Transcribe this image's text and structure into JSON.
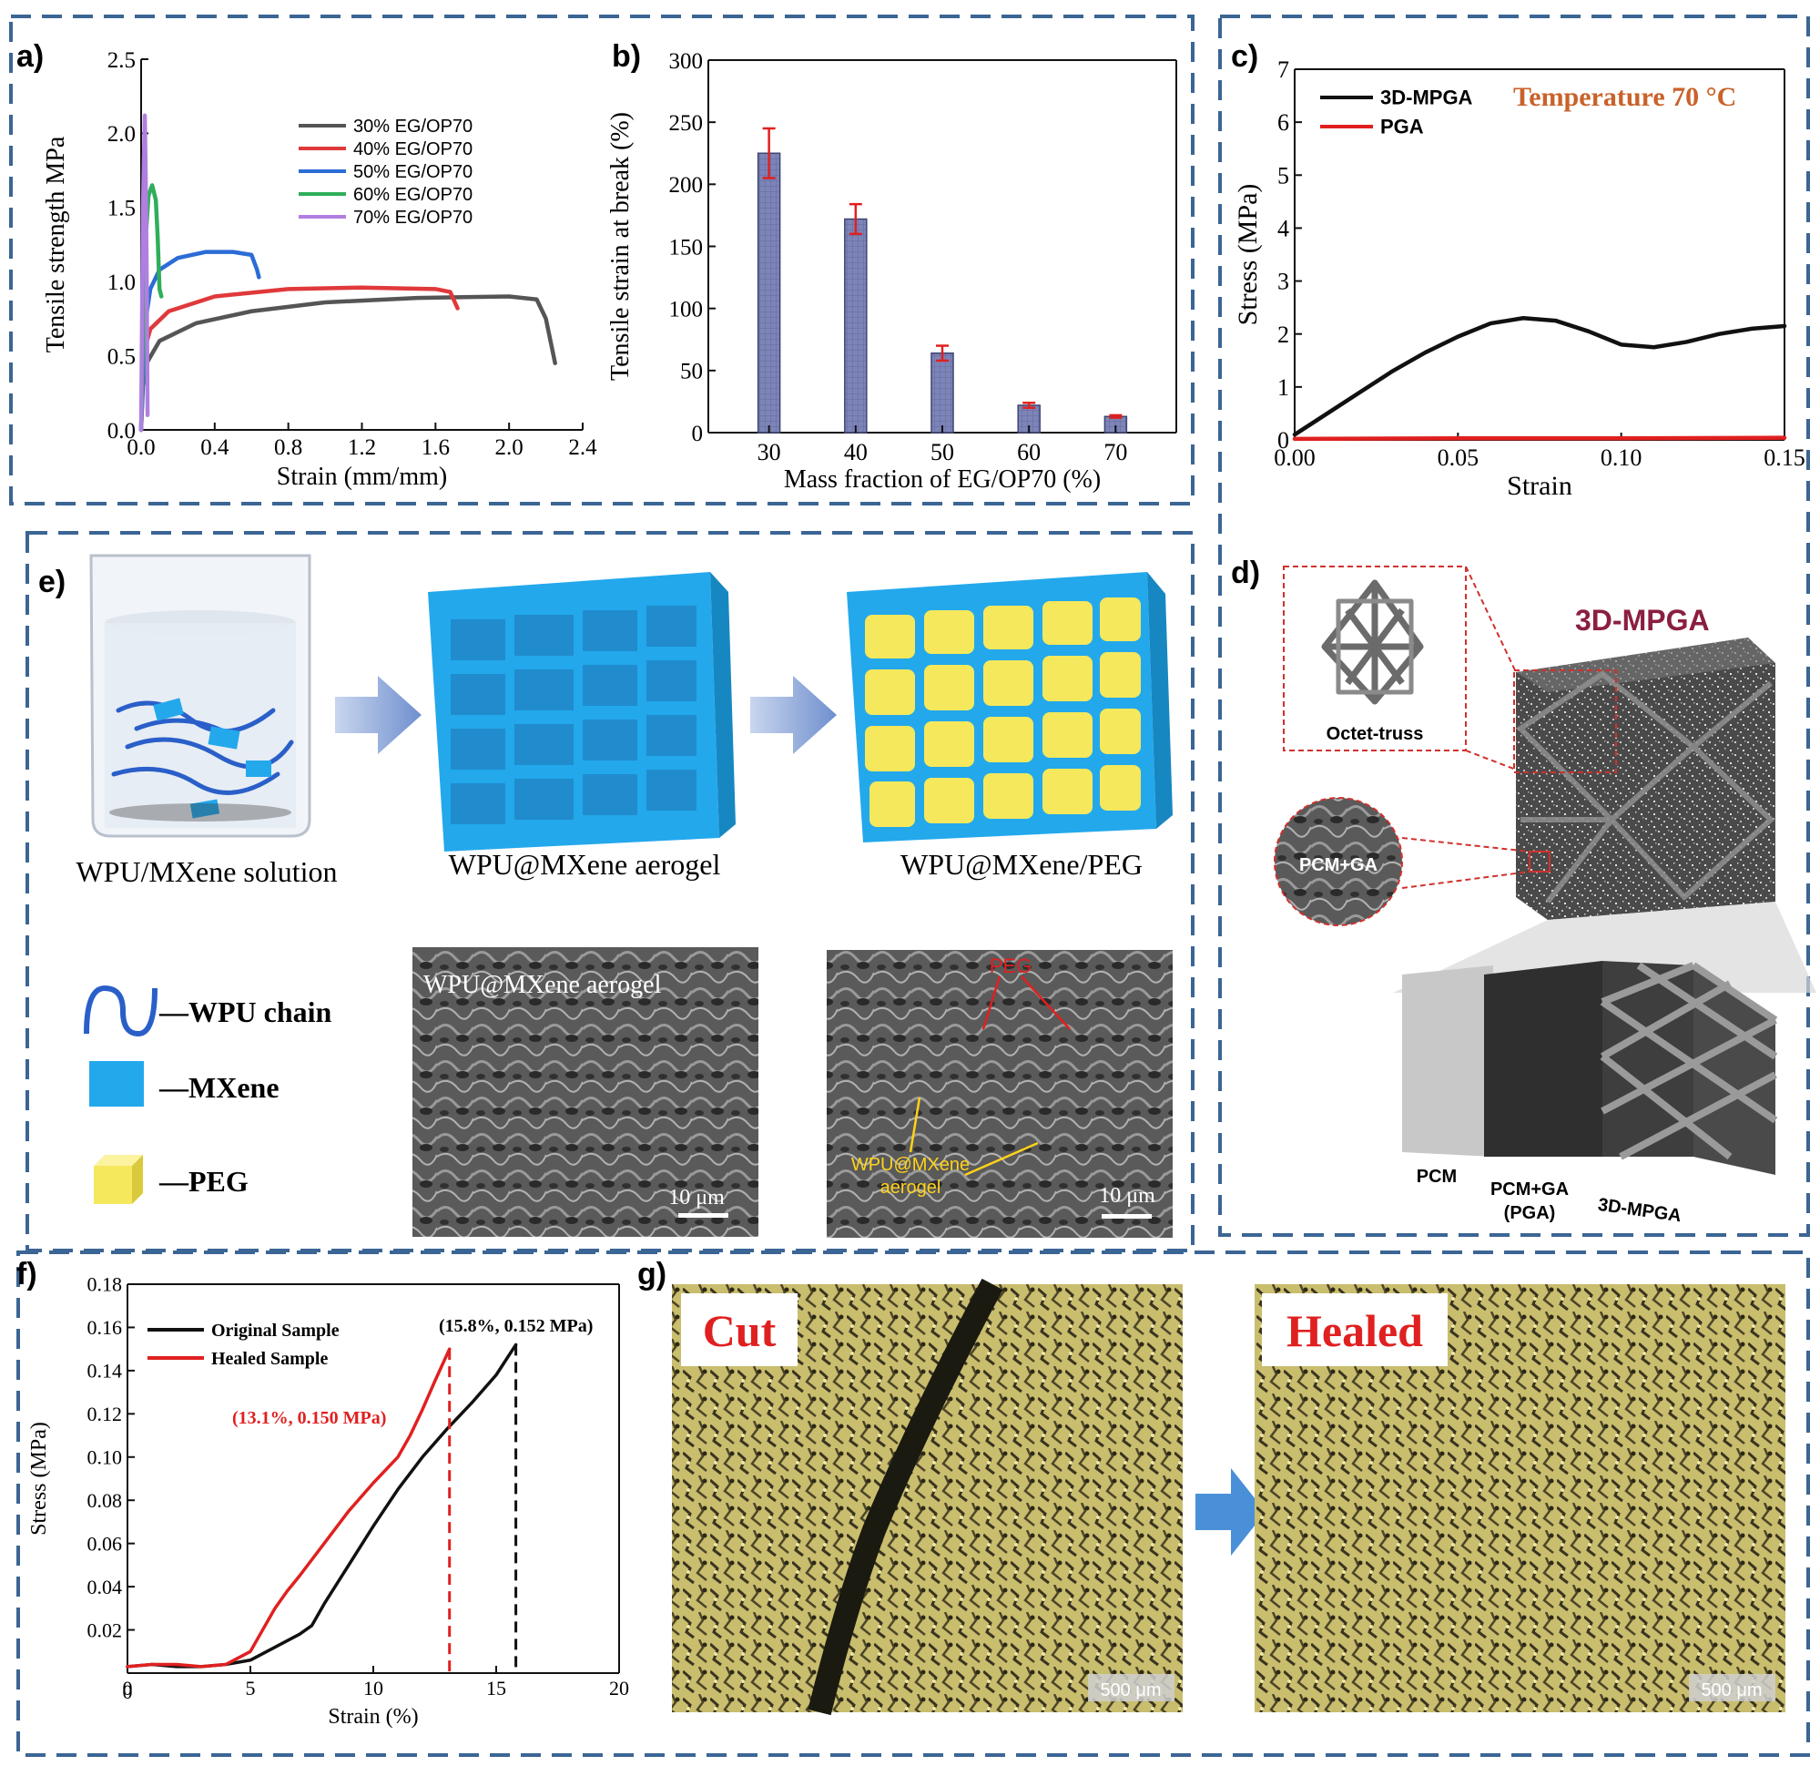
{
  "panel_letters": {
    "a": "a)",
    "b": "b)",
    "c": "c)",
    "d": "d)",
    "e": "e)",
    "f": "f)",
    "g": "g)"
  },
  "colors": {
    "frame": "#3b6594",
    "series_30": "#555555",
    "series_40": "#e0393b",
    "series_50": "#2b6cd6",
    "series_60": "#2fae5a",
    "series_70": "#b07fe0",
    "bar_fill": "#7c84b8",
    "error_bar": "#e02020",
    "mxene_blue": "#23a8ec",
    "peg_yellow": "#f5e85c",
    "label_red": "#e02020",
    "label_yellow": "#ffd21a",
    "title_maroon": "#8b1f3f",
    "temp_orange": "#c9622a"
  },
  "chart_data": [
    {
      "panel": "a",
      "type": "line",
      "xlabel": "Strain (mm/mm)",
      "ylabel": "Tensile strength MPa",
      "xlim": [
        0.0,
        2.4
      ],
      "ylim": [
        0.0,
        2.5
      ],
      "xticks": [
        "0.0",
        "0.4",
        "0.8",
        "1.2",
        "1.6",
        "2.0",
        "2.4"
      ],
      "yticks": [
        "0.0",
        "0.5",
        "1.0",
        "1.5",
        "2.0",
        "2.5"
      ],
      "legend_position": "top-right",
      "series": [
        {
          "name": "30% EG/OP70",
          "color": "#555555",
          "points": [
            [
              0.0,
              0.0
            ],
            [
              0.01,
              0.3
            ],
            [
              0.03,
              0.45
            ],
            [
              0.1,
              0.6
            ],
            [
              0.3,
              0.72
            ],
            [
              0.6,
              0.8
            ],
            [
              1.0,
              0.86
            ],
            [
              1.5,
              0.89
            ],
            [
              2.0,
              0.9
            ],
            [
              2.15,
              0.88
            ],
            [
              2.2,
              0.75
            ],
            [
              2.25,
              0.45
            ]
          ]
        },
        {
          "name": "40% EG/OP70",
          "color": "#e0393b",
          "points": [
            [
              0.0,
              0.0
            ],
            [
              0.01,
              0.5
            ],
            [
              0.05,
              0.68
            ],
            [
              0.15,
              0.8
            ],
            [
              0.4,
              0.9
            ],
            [
              0.8,
              0.95
            ],
            [
              1.2,
              0.96
            ],
            [
              1.6,
              0.95
            ],
            [
              1.68,
              0.93
            ],
            [
              1.72,
              0.82
            ]
          ]
        },
        {
          "name": "50% EG/OP70",
          "color": "#2b6cd6",
          "points": [
            [
              0.0,
              0.0
            ],
            [
              0.02,
              0.7
            ],
            [
              0.05,
              0.95
            ],
            [
              0.1,
              1.08
            ],
            [
              0.2,
              1.16
            ],
            [
              0.35,
              1.2
            ],
            [
              0.5,
              1.2
            ],
            [
              0.6,
              1.18
            ],
            [
              0.63,
              1.08
            ],
            [
              0.64,
              1.03
            ]
          ]
        },
        {
          "name": "60% EG/OP70",
          "color": "#2fae5a",
          "points": [
            [
              0.0,
              0.0
            ],
            [
              0.02,
              1.2
            ],
            [
              0.04,
              1.58
            ],
            [
              0.06,
              1.65
            ],
            [
              0.08,
              1.55
            ],
            [
              0.09,
              1.3
            ],
            [
              0.1,
              0.95
            ],
            [
              0.11,
              0.9
            ]
          ]
        },
        {
          "name": "70% EG/OP70",
          "color": "#b07fe0",
          "points": [
            [
              0.0,
              0.0
            ],
            [
              0.01,
              1.5
            ],
            [
              0.02,
              2.12
            ],
            [
              0.025,
              1.7
            ],
            [
              0.03,
              1.1
            ],
            [
              0.035,
              0.1
            ]
          ]
        }
      ]
    },
    {
      "panel": "b",
      "type": "bar",
      "xlabel": "Mass fraction of EG/OP70 (%)",
      "ylabel": "Tensile strain at break (%)",
      "ylim": [
        0,
        300
      ],
      "categories": [
        "30",
        "40",
        "50",
        "60",
        "70"
      ],
      "yticks": [
        "0",
        "50",
        "100",
        "150",
        "200",
        "250",
        "300"
      ],
      "values": [
        225,
        172,
        64,
        22,
        13
      ],
      "errors": [
        20,
        12,
        6,
        2,
        1
      ]
    },
    {
      "panel": "c",
      "type": "line",
      "xlabel": "Strain",
      "ylabel": "Stress (MPa)",
      "xlim": [
        0.0,
        0.15
      ],
      "ylim": [
        0,
        7
      ],
      "xticks": [
        "0.00",
        "0.05",
        "0.10",
        "0.15"
      ],
      "yticks": [
        "0",
        "1",
        "2",
        "3",
        "4",
        "5",
        "6",
        "7"
      ],
      "annotation": "Temperature 70 °C",
      "legend_position": "top-left",
      "series": [
        {
          "name": "3D-MPGA",
          "color": "#111111",
          "points": [
            [
              0.0,
              0.1
            ],
            [
              0.01,
              0.5
            ],
            [
              0.02,
              0.9
            ],
            [
              0.03,
              1.3
            ],
            [
              0.04,
              1.65
            ],
            [
              0.05,
              1.95
            ],
            [
              0.06,
              2.2
            ],
            [
              0.07,
              2.3
            ],
            [
              0.08,
              2.25
            ],
            [
              0.09,
              2.05
            ],
            [
              0.1,
              1.8
            ],
            [
              0.11,
              1.75
            ],
            [
              0.12,
              1.85
            ],
            [
              0.13,
              2.0
            ],
            [
              0.14,
              2.1
            ],
            [
              0.15,
              2.15
            ]
          ]
        },
        {
          "name": "PGA",
          "color": "#e02020",
          "points": [
            [
              0.0,
              0.02
            ],
            [
              0.05,
              0.03
            ],
            [
              0.1,
              0.03
            ],
            [
              0.15,
              0.04
            ]
          ]
        }
      ]
    },
    {
      "panel": "f",
      "type": "line",
      "xlabel": "Strain (%)",
      "ylabel": "Stress (MPa)",
      "xlim": [
        0,
        20
      ],
      "ylim": [
        0,
        0.18
      ],
      "xticks": [
        "0",
        "5",
        "10",
        "15",
        "20"
      ],
      "yticks": [
        "0.02",
        "0.04",
        "0.06",
        "0.08",
        "0.10",
        "0.12",
        "0.14",
        "0.16",
        "0.18"
      ],
      "legend_position": "top-left",
      "series": [
        {
          "name": "Original Sample",
          "color": "#111111",
          "points": [
            [
              0,
              0.003
            ],
            [
              1,
              0.004
            ],
            [
              2,
              0.003
            ],
            [
              3,
              0.003
            ],
            [
              4,
              0.004
            ],
            [
              5,
              0.006
            ],
            [
              6,
              0.012
            ],
            [
              7,
              0.018
            ],
            [
              7.5,
              0.022
            ],
            [
              8,
              0.032
            ],
            [
              9,
              0.05
            ],
            [
              10,
              0.068
            ],
            [
              11,
              0.085
            ],
            [
              12,
              0.1
            ],
            [
              13,
              0.113
            ],
            [
              14,
              0.125
            ],
            [
              15,
              0.138
            ],
            [
              15.8,
              0.152
            ]
          ]
        },
        {
          "name": "Healed Sample",
          "color": "#e02020",
          "points": [
            [
              0,
              0.003
            ],
            [
              1,
              0.004
            ],
            [
              2,
              0.004
            ],
            [
              3,
              0.003
            ],
            [
              4,
              0.004
            ],
            [
              5,
              0.01
            ],
            [
              5.5,
              0.02
            ],
            [
              6,
              0.03
            ],
            [
              6.5,
              0.038
            ],
            [
              7,
              0.045
            ],
            [
              8,
              0.06
            ],
            [
              9,
              0.075
            ],
            [
              10,
              0.088
            ],
            [
              11,
              0.1
            ],
            [
              11.5,
              0.11
            ],
            [
              12,
              0.122
            ],
            [
              12.5,
              0.135
            ],
            [
              13.1,
              0.15
            ]
          ]
        }
      ],
      "annotations": {
        "original_peak": "(15.8%, 0.152 MPa)",
        "healed_peak": "(13.1%, 0.150 MPa)"
      }
    }
  ],
  "panel_d": {
    "title": "3D-MPGA",
    "octet_label": "Octet-truss",
    "circle_label": "PCM+GA",
    "bottom_labels": {
      "pcm": "PCM",
      "pga_line1": "PCM+GA",
      "pga_line2": "(PGA)",
      "mpga": "3D-MPGA"
    }
  },
  "panel_e": {
    "labels": {
      "solution": "WPU/MXene solution",
      "aerogel": "WPU@MXene aerogel",
      "composite": "WPU@MXene/PEG"
    },
    "legend": {
      "wpu": "—WPU chain",
      "mxene": "—MXene",
      "peg": "—PEG"
    },
    "sem_left": {
      "title": "WPU@MXene aerogel",
      "scale": "10 μm"
    },
    "sem_right": {
      "peg": "PEG",
      "aerogel_line1": "WPU@MXene",
      "aerogel_line2": "aerogel",
      "scale": "10 μm"
    }
  },
  "panel_g": {
    "cut_label": "Cut",
    "healed_label": "Healed",
    "scale_left": "500 μm",
    "scale_right": "500 μm"
  }
}
